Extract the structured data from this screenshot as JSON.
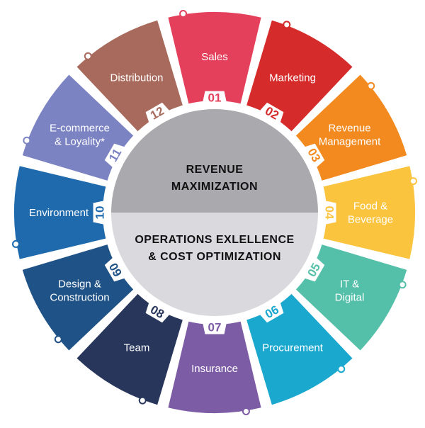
{
  "diagram": {
    "center_top": [
      "REVENUE",
      "MAXIMIZATION"
    ],
    "center_bottom": [
      "OPERATIONS EXLELLENCE",
      "& COST OPTIMIZATION"
    ],
    "center_top_color": "#a9a9ae",
    "center_bottom_color": "#d9d9de",
    "segments": [
      {
        "number": "01",
        "lines": [
          "Sales"
        ],
        "color": "#e4405c",
        "icon": "people-icon"
      },
      {
        "number": "02",
        "lines": [
          "Marketing"
        ],
        "color": "#d52b2b",
        "icon": "megaphone-icon"
      },
      {
        "number": "03",
        "lines": [
          "Revenue",
          "Management"
        ],
        "color": "#f28a1f",
        "icon": "chart-icon"
      },
      {
        "number": "04",
        "lines": [
          "Food &",
          "Beverage"
        ],
        "color": "#fbc43e",
        "icon": "cup-icon"
      },
      {
        "number": "05",
        "lines": [
          "IT &",
          "Digital"
        ],
        "color": "#55c0a9",
        "icon": "laptop-icon"
      },
      {
        "number": "06",
        "lines": [
          "Procurement"
        ],
        "color": "#1ba8cf",
        "icon": "box-icon"
      },
      {
        "number": "07",
        "lines": [
          "Insurance"
        ],
        "color": "#7d5ca6",
        "icon": "umbrella-icon"
      },
      {
        "number": "08",
        "lines": [
          "Team"
        ],
        "color": "#27365a",
        "icon": "team-icon"
      },
      {
        "number": "09",
        "lines": [
          "Design &",
          "Construction"
        ],
        "color": "#1f5286",
        "icon": "building-icon"
      },
      {
        "number": "10",
        "lines": [
          "Environment"
        ],
        "color": "#1e6aad",
        "icon": "leaf-icon"
      },
      {
        "number": "11",
        "lines": [
          "E-commerce",
          "& Loyality*"
        ],
        "color": "#7c83c3",
        "icon": "cart-icon"
      },
      {
        "number": "12",
        "lines": [
          "Distribution"
        ],
        "color": "#a86a5c",
        "icon": "truck-icon"
      }
    ]
  }
}
